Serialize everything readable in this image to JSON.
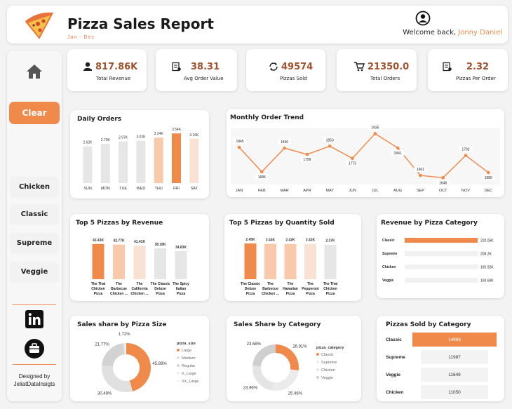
{
  "header": {
    "title": "Pizza Sales Report",
    "subtitle": "Jan - Dec",
    "welcome": "Welcome back,",
    "user": "Jonny Daniel"
  },
  "sidebar": {
    "clear_label": "Clear",
    "filters": [
      "Chicken",
      "Classic",
      "Supreme",
      "Veggie"
    ],
    "designed_by": "Designed by",
    "brand": "JeliatDataInsigts"
  },
  "kpis": [
    {
      "value": "817.86K",
      "label": "Total Revenue",
      "icon": "money-hand-icon"
    },
    {
      "value": "38.31",
      "label": "Avg Order Value",
      "icon": "receipt-icon"
    },
    {
      "value": "49574",
      "label": "Pizzas Sold",
      "icon": "refresh-dollar-icon"
    },
    {
      "value": "21350.0",
      "label": "Total Orders",
      "icon": "cart-icon"
    },
    {
      "value": "2.32",
      "label": "Pizzas Per Order",
      "icon": "receipt-icon"
    }
  ],
  "titles": {
    "daily": "Daily Orders",
    "monthly": "Monthly Order Trend",
    "top_rev": "Top 5 Pizzas by Revenue",
    "top_qty": "Top 5 Pizzas by Quantity Sold",
    "rev_cat": "Revenue by Pizza Category",
    "size_share": "Sales share by Pizza Size",
    "cat_share": "Sales Share by Category",
    "sold_cat": "Pizzas Sold by Category"
  },
  "colors": {
    "accent": "#f08a4b",
    "light": "#f9c9ab",
    "lighter": "#f9e1d3",
    "gray": "#e6e6e6"
  },
  "chart_data": [
    {
      "id": "daily",
      "type": "bar",
      "categories": [
        "SUN",
        "MON",
        "TUE",
        "WED",
        "THU",
        "FRI",
        "SAT"
      ],
      "values": [
        2.62,
        2.79,
        2.97,
        3.02,
        3.24,
        3.54,
        3.16
      ],
      "labels": [
        "2.62K",
        "2.79K",
        "2.97K",
        "3.02K",
        "3.24K",
        "3.54K",
        "3.16K"
      ],
      "shade": [
        "gray",
        "gray",
        "gray",
        "gray",
        "light",
        "accent",
        "lighter"
      ]
    },
    {
      "id": "monthly",
      "type": "line",
      "categories": [
        "JAN",
        "FEB",
        "MAR",
        "APR",
        "MAY",
        "JUN",
        "JUL",
        "AUG",
        "SEP",
        "OCT",
        "NOV",
        "DEC"
      ],
      "values": [
        1845,
        1685,
        1840,
        1799,
        1853,
        1773,
        1935,
        1841,
        1661,
        1646,
        1792,
        1680
      ]
    },
    {
      "id": "top_rev",
      "type": "bar",
      "categories": [
        [
          "The Thai",
          "Chicken",
          "Pizza"
        ],
        [
          "The",
          "Barbecue",
          "Chicken ..."
        ],
        [
          "The",
          "California",
          "Chicken ..."
        ],
        [
          "The Classic",
          "Deluxe",
          "Pizza"
        ],
        [
          "The Spicy",
          "Italian",
          "Pizza"
        ]
      ],
      "values": [
        43.43,
        42.77,
        41.41,
        38.18,
        34.83
      ],
      "labels": [
        "43.43K",
        "42.77K",
        "41.41K",
        "38.18K",
        "34.83K"
      ],
      "shade": [
        "accent",
        "light",
        "lighter",
        "gray",
        "gray"
      ]
    },
    {
      "id": "top_qty",
      "type": "bar",
      "categories": [
        [
          "The Classic",
          "Deluxe",
          "Pizza"
        ],
        [
          "The",
          "Barbecue",
          "Chicken ..."
        ],
        [
          "The",
          "Hawaiian",
          "Pizza"
        ],
        [
          "The",
          "Pepperoni",
          "Pizza"
        ],
        [
          "The Thai",
          "Chicken",
          "Pizza"
        ]
      ],
      "values": [
        2.45,
        2.43,
        2.42,
        2.42,
        2.37
      ],
      "labels": [
        "2.45K",
        "2.43K",
        "2.42K",
        "2.42K",
        "2.37K"
      ],
      "shade": [
        "accent",
        "light",
        "light",
        "lighter",
        "gray"
      ]
    },
    {
      "id": "rev_cat",
      "type": "bar",
      "orientation": "horizontal",
      "categories": [
        "Classic",
        "Supreme",
        "Chicken",
        "Veggie"
      ],
      "values": [
        220.05,
        208.2,
        195.92,
        193.69
      ],
      "labels": [
        "220.05K",
        "208.2K",
        "195.92K",
        "193.69K"
      ]
    },
    {
      "id": "size_share",
      "type": "pie",
      "legend_title": "pizza_size",
      "categories": [
        "Large",
        "Medium",
        "Regular",
        "X_Large",
        "XX_Large"
      ],
      "values": [
        45.89,
        30.49,
        21.77,
        1.72,
        0.12
      ],
      "labels": [
        "45.89%",
        "30.49%",
        "21.77%",
        "1.72%",
        ""
      ]
    },
    {
      "id": "cat_share",
      "type": "pie",
      "legend_title": "pizza_category",
      "categories": [
        "Classic",
        "Supreme",
        "Chicken",
        "Veggie"
      ],
      "values": [
        26.91,
        25.46,
        23.96,
        23.68
      ],
      "labels": [
        "26.91%",
        "25.46%",
        "23.96%",
        "23.68%"
      ]
    },
    {
      "id": "sold_cat",
      "type": "table",
      "categories": [
        "Classic",
        "Supreme",
        "Veggie",
        "Chicken"
      ],
      "values": [
        14888,
        11987,
        11649,
        11050
      ]
    }
  ]
}
